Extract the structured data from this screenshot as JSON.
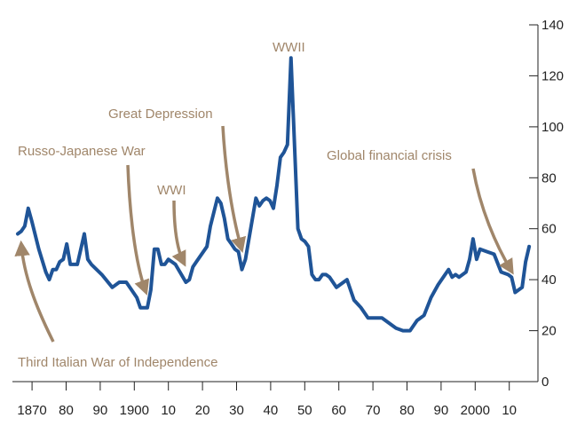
{
  "chart_data": {
    "type": "line",
    "title": "",
    "xlabel": "",
    "ylabel": "",
    "xlim": [
      1866,
      2013
    ],
    "ylim": [
      0,
      140
    ],
    "grid": false,
    "y_axis_side": "right",
    "x_tick_labels": [
      "1870",
      "80",
      "90",
      "1900",
      "10",
      "20",
      "30",
      "40",
      "50",
      "60",
      "70",
      "80",
      "90",
      "2000",
      "10"
    ],
    "x_tick_values": [
      1870,
      1880,
      1890,
      1900,
      1910,
      1920,
      1930,
      1940,
      1950,
      1960,
      1970,
      1980,
      1990,
      2000,
      2010
    ],
    "y_tick_labels": [
      "0",
      "20",
      "40",
      "60",
      "80",
      "100",
      "120",
      "140"
    ],
    "y_tick_values": [
      0,
      20,
      40,
      60,
      80,
      100,
      120,
      140
    ],
    "line_color": "#1f5497",
    "annotation_color": "#a0866a",
    "series": [
      {
        "x": [
          1866,
          1867,
          1868,
          1869,
          1870,
          1872,
          1874,
          1875,
          1876,
          1877,
          1878,
          1879,
          1880,
          1881,
          1883,
          1885,
          1886,
          1887,
          1890,
          1893,
          1895,
          1897,
          1900,
          1901,
          1903,
          1904,
          1905,
          1906,
          1907,
          1908,
          1909,
          1910,
          1911,
          1914,
          1915,
          1916,
          1917,
          1920,
          1921,
          1923,
          1924,
          1925,
          1926,
          1927,
          1928,
          1929,
          1930,
          1931,
          1934,
          1935,
          1936,
          1937,
          1938,
          1939,
          1940,
          1941,
          1942,
          1943,
          1944,
          1946,
          1947,
          1948,
          1949,
          1950,
          1951,
          1952,
          1953,
          1954,
          1955,
          1957,
          1958,
          1960,
          1962,
          1964,
          1966,
          1968,
          1970,
          1974,
          1976,
          1978,
          1980,
          1982,
          1984,
          1986,
          1988,
          1989,
          1990,
          1991,
          1992,
          1994,
          1995,
          1996,
          1997,
          1998,
          2000,
          2002,
          2004,
          2006,
          2007,
          2008,
          2010,
          2011,
          2012
        ],
        "y": [
          58,
          59,
          61,
          68,
          63,
          52,
          43,
          40,
          44,
          44,
          47,
          48,
          54,
          46,
          46,
          58,
          48,
          46,
          42,
          37,
          39,
          39,
          33,
          29,
          29,
          36,
          52,
          52,
          46,
          46,
          48,
          47,
          46,
          39,
          40,
          45,
          47,
          53,
          61,
          72,
          70,
          64,
          56,
          54,
          52,
          51,
          44,
          48,
          72,
          69,
          71,
          72,
          71,
          68,
          77,
          88,
          90,
          93,
          127,
          60,
          56,
          55,
          53,
          42,
          40,
          40,
          42,
          42,
          41,
          37,
          38,
          40,
          32,
          29,
          25,
          25,
          25,
          21,
          20,
          20,
          24,
          26,
          33,
          38,
          42,
          44,
          41,
          42,
          41,
          43,
          48,
          56,
          48,
          52,
          51,
          50,
          43,
          42,
          41,
          35,
          37,
          47,
          53
        ]
      }
    ],
    "annotations": [
      {
        "text": "WWII"
      },
      {
        "text": "Great Depression"
      },
      {
        "text": "Russo-Japanese War"
      },
      {
        "text": "WWI"
      },
      {
        "text": "Global financial crisis"
      },
      {
        "text": "Third Italian War of Independence"
      }
    ]
  }
}
